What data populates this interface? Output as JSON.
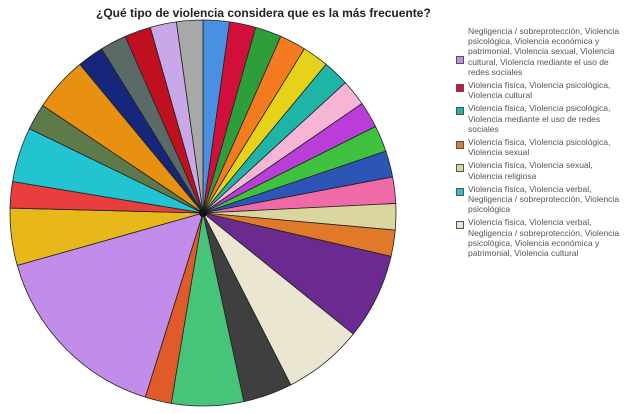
{
  "chart_data": {
    "type": "pie",
    "title": "¿Qué tipo de violencia considera que es la más frecuente?",
    "slices": [
      {
        "value": 2.3,
        "color": "#4a90e2"
      },
      {
        "value": 2.3,
        "color": "#d0103a"
      },
      {
        "value": 2.3,
        "color": "#2e9e3a"
      },
      {
        "value": 2.3,
        "color": "#f47b1f"
      },
      {
        "value": 2.3,
        "color": "#e6d21a"
      },
      {
        "value": 2.3,
        "color": "#1fb5a6"
      },
      {
        "value": 2.3,
        "color": "#f7b5d6"
      },
      {
        "value": 2.3,
        "color": "#b93ed8"
      },
      {
        "value": 2.3,
        "color": "#3fc23f"
      },
      {
        "value": 2.3,
        "color": "#2c55b5"
      },
      {
        "value": 2.3,
        "color": "#f06aa8"
      },
      {
        "value": 2.3,
        "color": "#d9d79e"
      },
      {
        "value": 2.3,
        "color": "#e07a2a"
      },
      {
        "value": 7.5,
        "color": "#6b2a8f"
      },
      {
        "value": 7.0,
        "color": "#ebe6d2"
      },
      {
        "value": 4.3,
        "color": "#3f3f3f"
      },
      {
        "value": 6.3,
        "color": "#45c47a"
      },
      {
        "value": 2.3,
        "color": "#e05a2a"
      },
      {
        "value": 16.5,
        "color": "#c38bea"
      },
      {
        "value": 5.0,
        "color": "#e8b81a"
      },
      {
        "value": 2.3,
        "color": "#e83e3e"
      },
      {
        "value": 4.8,
        "color": "#22c4d1"
      },
      {
        "value": 2.3,
        "color": "#5f7a4a"
      },
      {
        "value": 4.8,
        "color": "#e8900f"
      },
      {
        "value": 2.3,
        "color": "#16267a"
      },
      {
        "value": 2.3,
        "color": "#5a6a66"
      },
      {
        "value": 2.3,
        "color": "#c01020"
      },
      {
        "value": 2.3,
        "color": "#c8a8e8"
      },
      {
        "value": 2.3,
        "color": "#a8a8a8"
      }
    ],
    "legend": [
      {
        "label": "Negligencia / sobreprotección, Violencia psicológica, Violencia económica y patrimonial, Violencia sexual, Violencia cultural, Violencia mediante el uso de redes sociales",
        "color": "#c38bea"
      },
      {
        "label": "Violencia física, Violencia psicológica, Violencia cultural",
        "color": "#d0103a"
      },
      {
        "label": "Violencia física, Violencia psicológica, Violencia mediante el uso de redes sociales",
        "color": "#1fb5a6"
      },
      {
        "label": "Violencia física, Violencia psicológica, Violencia sexual",
        "color": "#e07a2a"
      },
      {
        "label": "Violencia física, Violencia sexual, Violencia religiosa",
        "color": "#d9d79e"
      },
      {
        "label": "Violencia física, Violencia verbal, Negligencia / sobreprotección, Violencia psicológica",
        "color": "#22c4d1"
      },
      {
        "label": "Violencia física, Violencia verbal, Negligencia / sobreprotección, Violencia psicológica, Violencia económica y patrimonial, Violencia cultural",
        "color": "#ebe6d2"
      }
    ],
    "legend_position": "right"
  }
}
